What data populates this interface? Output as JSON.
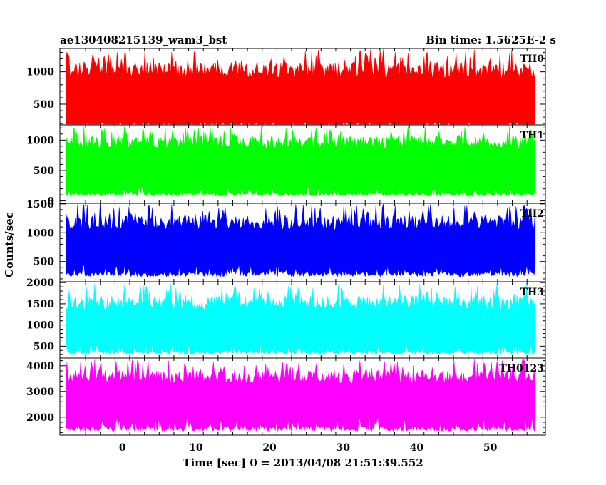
{
  "chart_data": {
    "type": "line",
    "title": "ae130408215139_wam3_bst",
    "subtitle": "Bin time: 1.5625E-2 s",
    "xlabel": "Time [sec] 0 = 2013/04/08 21:51:39.552",
    "ylabel": "Counts/sec",
    "xlim": [
      -8.5,
      57.5
    ],
    "x_ticks": [
      0,
      10,
      20,
      30,
      40,
      50
    ],
    "data_range_x": [
      -7.7,
      56.2
    ],
    "panels": [
      {
        "name": "TH0",
        "color": "#ff0000",
        "ylim": [
          180,
          1360
        ],
        "y_ticks": [
          500,
          1000
        ],
        "envelope": {
          "low_base": 160,
          "low_spikes_to": 230,
          "high_base": 900,
          "high_spikes_to": 1350
        }
      },
      {
        "name": "TH1",
        "color": "#00ff00",
        "ylim": [
          -40,
          1250
        ],
        "y_ticks": [
          0,
          500,
          1000
        ],
        "envelope": {
          "low_base": 80,
          "low_spikes_to": 220,
          "high_base": 860,
          "high_spikes_to": 1240
        }
      },
      {
        "name": "TH2",
        "color": "#0000ff",
        "ylim": [
          150,
          1510
        ],
        "y_ticks": [
          500,
          1000,
          1500
        ],
        "envelope": {
          "low_base": 240,
          "low_spikes_to": 450,
          "high_base": 1050,
          "high_spikes_to": 1500
        }
      },
      {
        "name": "TH3",
        "color": "#00ffff",
        "ylim": [
          220,
          2020
        ],
        "y_ticks": [
          500,
          1000,
          1500,
          2000
        ],
        "envelope": {
          "low_base": 300,
          "low_spikes_to": 550,
          "high_base": 1350,
          "high_spikes_to": 1980
        }
      },
      {
        "name": "TH0123",
        "color": "#ff00ff",
        "ylim": [
          1300,
          4300
        ],
        "y_ticks": [
          2000,
          3000,
          4000
        ],
        "envelope": {
          "low_base": 1450,
          "low_spikes_to": 2000,
          "high_base": 3300,
          "high_spikes_to": 4250
        }
      }
    ],
    "grid": false,
    "legend": "panel labels at top-right of each panel"
  }
}
